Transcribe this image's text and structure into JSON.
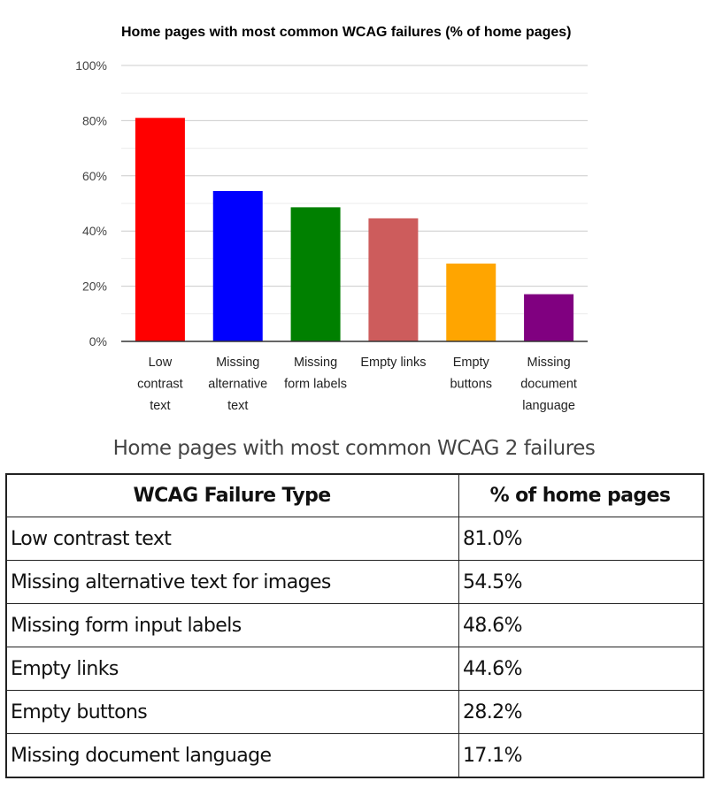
{
  "chart_data": {
    "type": "bar",
    "title": "Home pages with most common WCAG failures (% of home pages)",
    "categories": [
      [
        "Low",
        "contrast",
        "text"
      ],
      [
        "Missing",
        "alternative",
        "text"
      ],
      [
        "Missing",
        "form labels"
      ],
      [
        "Empty links"
      ],
      [
        "Empty",
        "buttons"
      ],
      [
        "Missing",
        "document",
        "language"
      ]
    ],
    "values": [
      81.0,
      54.5,
      48.6,
      44.6,
      28.2,
      17.1
    ],
    "colors": [
      "#ff0000",
      "#0000ff",
      "#008000",
      "#cd5c5c",
      "#ffa500",
      "#800080"
    ],
    "ylim": [
      0,
      100
    ],
    "yticks": [
      "0%",
      "20%",
      "40%",
      "60%",
      "80%",
      "100%"
    ],
    "grid": true,
    "legend": "none"
  },
  "table": {
    "caption": "Home pages with most common WCAG 2 failures",
    "headers": [
      "WCAG Failure Type",
      "% of home pages"
    ],
    "rows": [
      [
        "Low contrast text",
        "81.0%"
      ],
      [
        "Missing alternative text for images",
        "54.5%"
      ],
      [
        "Missing form input labels",
        "48.6%"
      ],
      [
        "Empty links",
        "44.6%"
      ],
      [
        "Empty buttons",
        "28.2%"
      ],
      [
        "Missing document language",
        "17.1%"
      ]
    ]
  }
}
